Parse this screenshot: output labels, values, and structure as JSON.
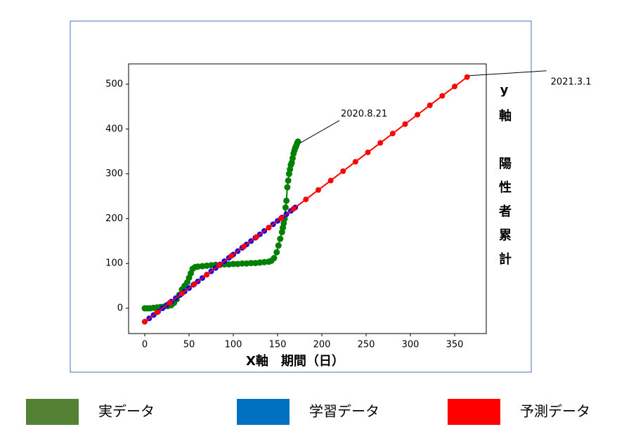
{
  "chart_data": {
    "type": "line",
    "xlabel": "X軸　期間（日）",
    "ylabel": "y軸　陽性者累計",
    "xlim": [
      -18.25,
      385.7
    ],
    "ylim": [
      -56.4,
      545.4
    ],
    "xticks": [
      0,
      50,
      100,
      150,
      200,
      250,
      300,
      350
    ],
    "yticks": [
      0,
      100,
      200,
      300,
      400,
      500
    ],
    "series": [
      {
        "name": "実データ",
        "color": "#008000",
        "legend_color": "#548235",
        "x": [
          0,
          3,
          6,
          10,
          14,
          18,
          22,
          26,
          30,
          33,
          36,
          39,
          42,
          45,
          48,
          50,
          52,
          54,
          57,
          60,
          65,
          70,
          75,
          80,
          85,
          90,
          95,
          100,
          105,
          110,
          115,
          120,
          125,
          130,
          135,
          140,
          143,
          146,
          149,
          151,
          153,
          155,
          156,
          157,
          158,
          159,
          160,
          161,
          162,
          163,
          164,
          165,
          166,
          167,
          168,
          169,
          170,
          171,
          172,
          173
        ],
        "values": [
          0,
          0,
          0,
          1,
          2,
          3,
          4,
          5,
          7,
          12,
          20,
          30,
          42,
          50,
          58,
          68,
          78,
          88,
          92,
          93,
          94,
          95,
          96,
          97,
          97,
          98,
          98,
          99,
          99,
          100,
          100,
          101,
          101,
          102,
          103,
          104,
          106,
          112,
          125,
          140,
          155,
          170,
          180,
          190,
          200,
          225,
          240,
          270,
          285,
          300,
          310,
          320,
          325,
          335,
          345,
          352,
          358,
          362,
          368,
          372
        ]
      },
      {
        "name": "学習データ",
        "color": "#0000ff",
        "legend_color": "#0070c0",
        "x": [
          0,
          5,
          10,
          15,
          20,
          25,
          30,
          35,
          40,
          45,
          50,
          55,
          60,
          65,
          70,
          75,
          80,
          85,
          90,
          95,
          100,
          105,
          110,
          115,
          120,
          125,
          130,
          135,
          140,
          145,
          150,
          155,
          160,
          165,
          170
        ],
        "values": [
          -30,
          -22.5,
          -15,
          -7.5,
          0,
          7.5,
          15,
          22.5,
          30,
          37.5,
          45,
          52.5,
          60,
          67.5,
          75,
          82.5,
          90,
          97.5,
          105,
          112.5,
          120,
          127.5,
          135,
          142.5,
          150,
          157.5,
          165,
          172.5,
          180,
          187.5,
          195,
          202.5,
          210,
          217.5,
          225
        ]
      },
      {
        "name": "予測データ",
        "color": "#ff0000",
        "legend_color": "#ff0000",
        "x": [
          0,
          14,
          28,
          42,
          56,
          70,
          84,
          98,
          112,
          126,
          140,
          154,
          168,
          182,
          196,
          210,
          224,
          238,
          252,
          266,
          280,
          294,
          308,
          322,
          336,
          350,
          364
        ],
        "values": [
          -30,
          -9,
          12,
          33,
          54,
          75,
          96,
          117,
          138,
          159,
          180,
          201,
          222,
          243,
          264,
          285,
          306,
          327,
          348,
          369,
          390,
          411,
          432,
          453,
          474,
          495,
          516
        ]
      }
    ],
    "annotations": [
      {
        "text": "2020.8.21",
        "x": 173,
        "y": 372
      },
      {
        "text": "2021.3.1",
        "x": 364,
        "y": 516
      }
    ]
  }
}
